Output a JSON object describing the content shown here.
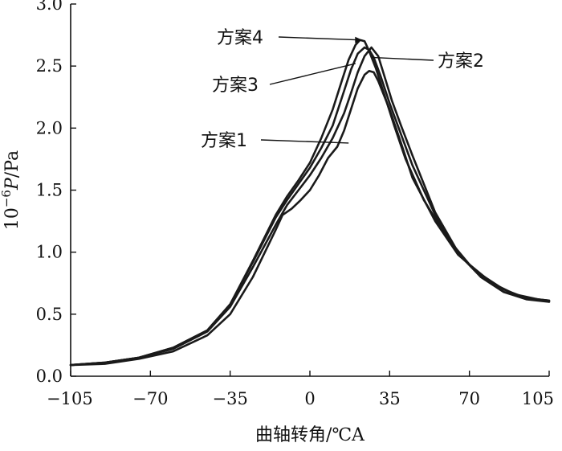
{
  "chart_data": {
    "type": "line",
    "xlabel": "曲轴转角/℃A",
    "ylabel_prefix": "10",
    "ylabel_exponent": "−6",
    "ylabel_var": "P",
    "ylabel_unit": "/Pa",
    "xlim": [
      -105,
      105
    ],
    "ylim": [
      0,
      3.0
    ],
    "xticks": [
      -105,
      -70,
      -35,
      0,
      35,
      70,
      105
    ],
    "xtick_labels": [
      "−105",
      "−70",
      "−35",
      "0",
      "35",
      "70",
      "105"
    ],
    "yticks": [
      0,
      0.5,
      1.0,
      1.5,
      2.0,
      2.5,
      3.0
    ],
    "ytick_labels": [
      "0.0",
      "0.5",
      "1.0",
      "1.5",
      "2.0",
      "2.5",
      "3.0"
    ],
    "series": [
      {
        "name": "方案1",
        "x": [
          -105,
          -90,
          -75,
          -60,
          -45,
          -35,
          -25,
          -15,
          -12,
          -8,
          -4,
          0,
          4,
          8,
          12,
          15,
          18,
          21,
          24,
          26,
          28,
          30,
          35,
          40,
          45,
          55,
          65,
          75,
          85,
          95,
          100,
          105
        ],
        "y": [
          0.09,
          0.1,
          0.14,
          0.2,
          0.33,
          0.5,
          0.8,
          1.18,
          1.3,
          1.35,
          1.42,
          1.5,
          1.62,
          1.76,
          1.85,
          1.98,
          2.15,
          2.32,
          2.43,
          2.46,
          2.45,
          2.38,
          2.15,
          1.88,
          1.6,
          1.25,
          0.98,
          0.82,
          0.7,
          0.63,
          0.62,
          0.6
        ]
      },
      {
        "name": "方案2",
        "x": [
          -105,
          -90,
          -75,
          -60,
          -45,
          -35,
          -25,
          -15,
          -10,
          -5,
          0,
          5,
          10,
          15,
          18,
          21,
          24,
          27,
          30,
          33,
          36,
          40,
          45,
          55,
          65,
          75,
          85,
          95,
          105
        ],
        "y": [
          0.09,
          0.11,
          0.15,
          0.22,
          0.36,
          0.56,
          0.88,
          1.22,
          1.38,
          1.5,
          1.62,
          1.76,
          1.92,
          2.12,
          2.28,
          2.45,
          2.58,
          2.65,
          2.58,
          2.4,
          2.22,
          2.02,
          1.78,
          1.32,
          1.0,
          0.8,
          0.68,
          0.62,
          0.6
        ]
      },
      {
        "name": "方案3",
        "x": [
          -105,
          -90,
          -75,
          -60,
          -45,
          -35,
          -25,
          -15,
          -10,
          -5,
          0,
          5,
          10,
          15,
          18,
          21,
          24,
          26,
          28,
          31,
          35,
          40,
          45,
          55,
          65,
          75,
          85,
          95,
          105
        ],
        "y": [
          0.09,
          0.11,
          0.15,
          0.23,
          0.37,
          0.58,
          0.92,
          1.28,
          1.42,
          1.55,
          1.68,
          1.84,
          2.02,
          2.3,
          2.47,
          2.6,
          2.65,
          2.63,
          2.57,
          2.42,
          2.2,
          1.95,
          1.7,
          1.3,
          0.99,
          0.8,
          0.68,
          0.63,
          0.61
        ]
      },
      {
        "name": "方案4",
        "x": [
          -105,
          -90,
          -75,
          -60,
          -45,
          -35,
          -25,
          -15,
          -10,
          -5,
          0,
          5,
          10,
          14,
          17,
          20,
          22,
          24,
          26,
          29,
          33,
          37,
          42,
          50,
          60,
          70,
          80,
          90,
          100,
          105
        ],
        "y": [
          0.09,
          0.11,
          0.15,
          0.23,
          0.37,
          0.58,
          0.93,
          1.3,
          1.45,
          1.58,
          1.72,
          1.92,
          2.15,
          2.38,
          2.55,
          2.67,
          2.71,
          2.7,
          2.62,
          2.48,
          2.25,
          2.02,
          1.75,
          1.42,
          1.12,
          0.9,
          0.75,
          0.66,
          0.62,
          0.61
        ]
      }
    ],
    "annotations": [
      {
        "label": "方案4",
        "target_x": 23,
        "target_y": 2.71
      },
      {
        "label": "方案2",
        "target_x": 27,
        "target_y": 2.57
      },
      {
        "label": "方案3",
        "target_x": 20,
        "target_y": 2.52
      },
      {
        "label": "方案1",
        "target_x": 17,
        "target_y": 1.88
      }
    ]
  }
}
